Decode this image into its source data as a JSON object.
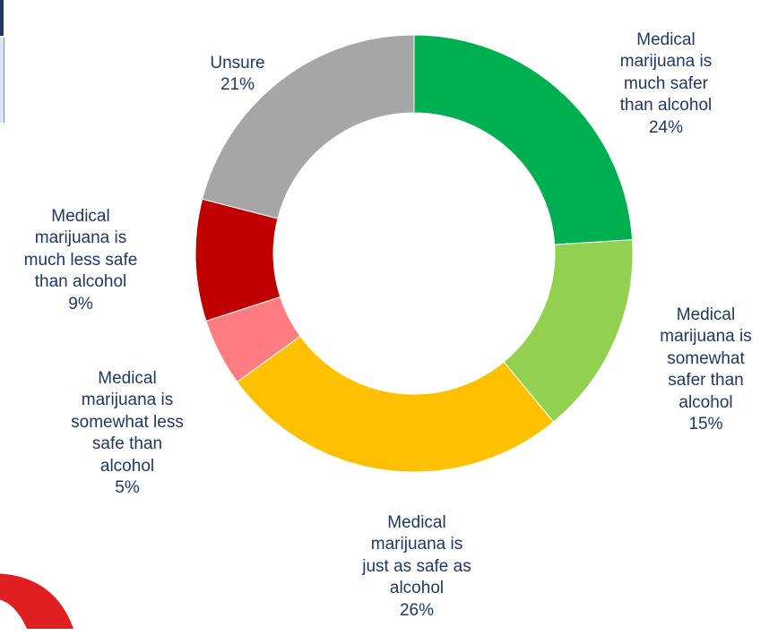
{
  "chart_data": {
    "type": "pie",
    "donut": true,
    "start_angle_deg": 0,
    "direction": "clockwise",
    "slices": [
      {
        "label": "Medical\nmarijuana is\nmuch safer\nthan alcohol",
        "value": 24,
        "value_label": "24%",
        "color": "#00b050"
      },
      {
        "label": "Medical\nmarijuana is\nsomewhat\nsafer than\nalcohol",
        "value": 15,
        "value_label": "15%",
        "color": "#92d050"
      },
      {
        "label": "Medical\nmarijuana is\njust as safe as\nalcohol",
        "value": 26,
        "value_label": "26%",
        "color": "#ffc000"
      },
      {
        "label": "Medical\nmarijuana is\nsomewhat less\nsafe than\nalcohol",
        "value": 5,
        "value_label": "5%",
        "color": "#ff7c80"
      },
      {
        "label": "Medical\nmarijuana is\nmuch less safe\nthan alcohol",
        "value": 9,
        "value_label": "9%",
        "color": "#c00000"
      },
      {
        "label": "Unsure",
        "value": 21,
        "value_label": "21%",
        "color": "#a6a6a6"
      }
    ]
  },
  "colors": {
    "label_text": "#1f3864",
    "decoration_red": "#e02020"
  }
}
